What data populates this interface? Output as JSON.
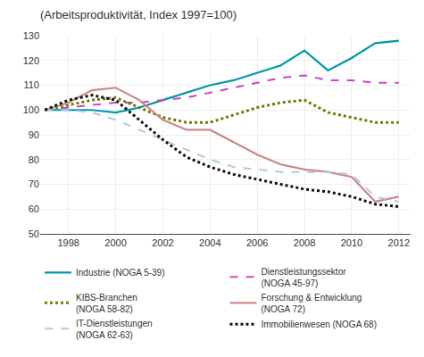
{
  "chart_data": {
    "type": "line",
    "title": "(Arbeitsproduktivität, Index 1997=100)",
    "x": [
      1997,
      1998,
      1999,
      2000,
      2001,
      2002,
      2003,
      2004,
      2005,
      2006,
      2007,
      2008,
      2009,
      2010,
      2011,
      2012
    ],
    "xlim": [
      1996.8,
      2012.5
    ],
    "xticks": [
      1998,
      2000,
      2002,
      2004,
      2006,
      2008,
      2010,
      2012
    ],
    "ylim": [
      50,
      130
    ],
    "yticks": [
      50,
      60,
      70,
      80,
      90,
      100,
      110,
      120,
      130
    ],
    "grid": true,
    "legend": "bottom",
    "series": [
      {
        "name": "Industrie (NOGA 5-39)",
        "color": "#0099AA",
        "line_style": "solid",
        "values": [
          100,
          100,
          100,
          99,
          101,
          104,
          107,
          110,
          112,
          115,
          118,
          124,
          116,
          121,
          127,
          128
        ]
      },
      {
        "name": "Dienstleistungssektor\n(NOGA 45-97)",
        "color": "#CC44CC",
        "line_style": "dashed",
        "values": [
          100,
          101,
          102,
          103,
          103,
          104,
          105,
          107,
          109,
          111,
          113,
          114,
          112,
          112,
          111,
          111
        ]
      },
      {
        "name": "KIBS-Branchen\n(NOGA 58-82)",
        "color": "#777700",
        "line_style": "dotted",
        "values": [
          100,
          102,
          104,
          105,
          101,
          97,
          95,
          95,
          98,
          101,
          103,
          104,
          99,
          97,
          95,
          95
        ]
      },
      {
        "name": "Forschung & Entwicklung\n(NOGA 72)",
        "color": "#CC8888",
        "line_style": "solid",
        "values": [
          100,
          103,
          108,
          109,
          104,
          96,
          92,
          92,
          87,
          82,
          78,
          76,
          75,
          73,
          63,
          65
        ]
      },
      {
        "name": "IT-Dienstleistungen\n(NOGA 62-63)",
        "color": "#AACCDD",
        "line_style": "dashed",
        "values": [
          100,
          100,
          99,
          96,
          92,
          88,
          84,
          80,
          77,
          76,
          75,
          75,
          75,
          74,
          65,
          63
        ]
      },
      {
        "name": "Immobilienwesen (NOGA 68)",
        "color": "#111111",
        "line_style": "dotted",
        "values": [
          100,
          104,
          106,
          104,
          96,
          88,
          81,
          77,
          74,
          72,
          70,
          68,
          67,
          65,
          62,
          61
        ]
      }
    ]
  }
}
